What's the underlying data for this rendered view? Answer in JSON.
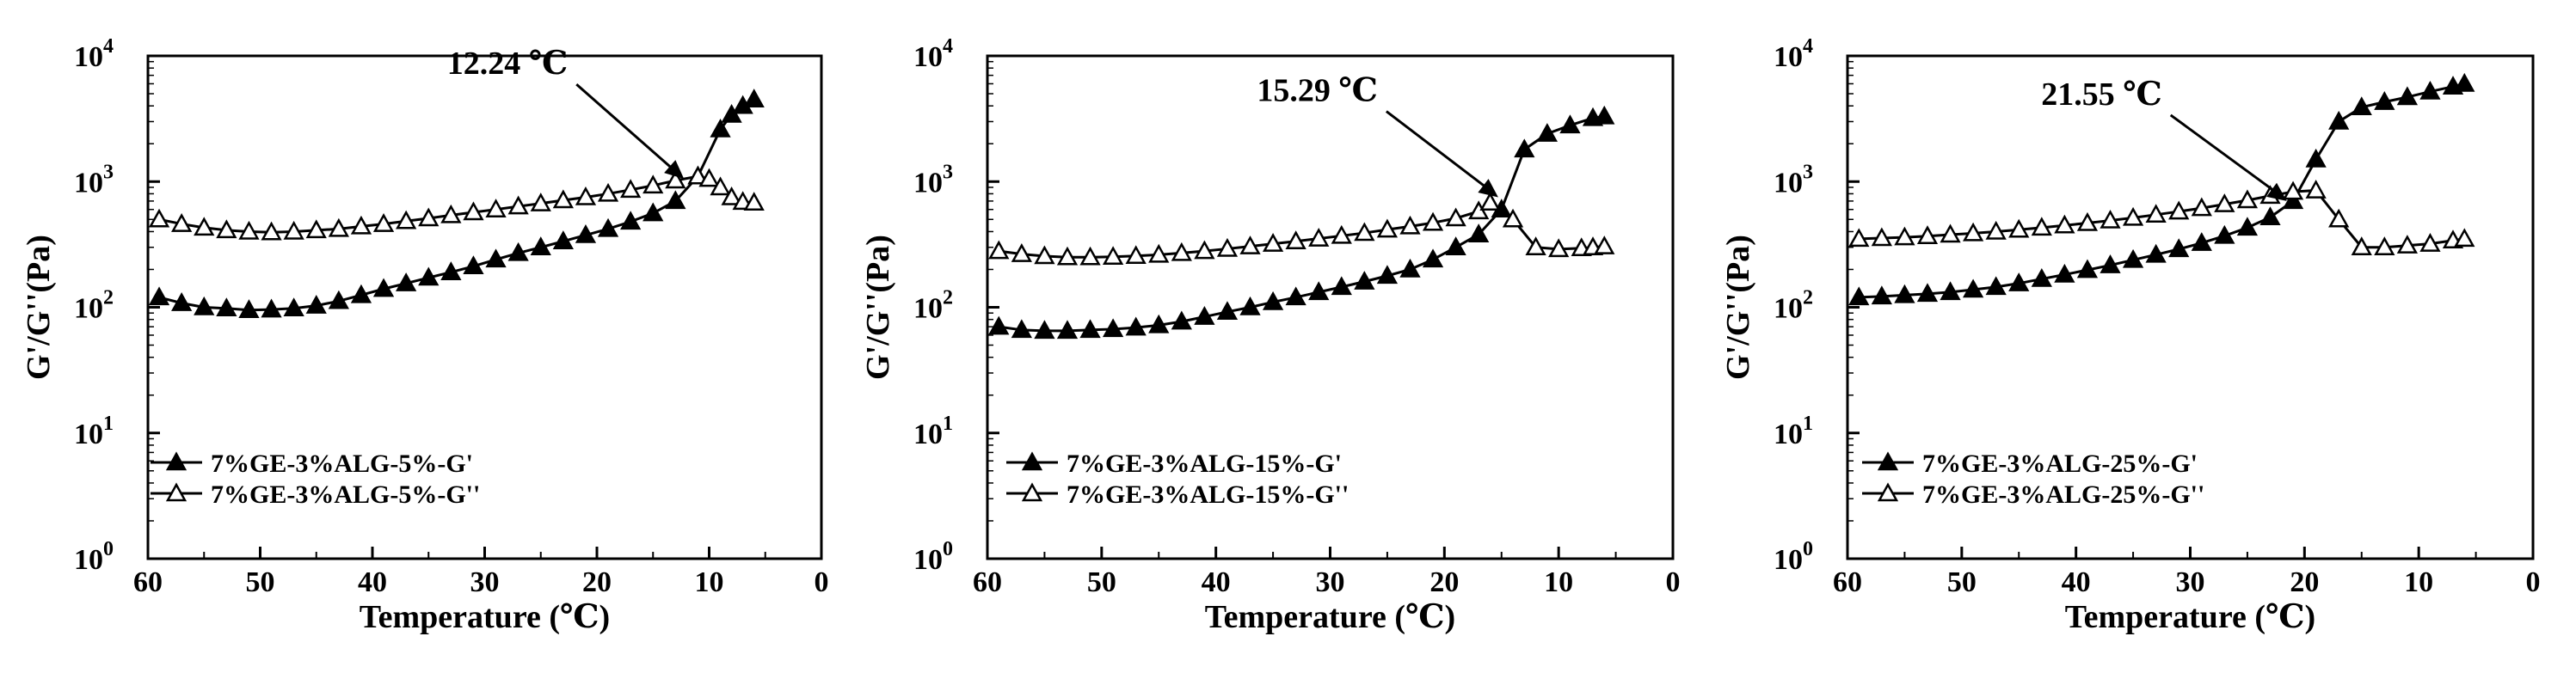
{
  "chart_data": [
    {
      "type": "line",
      "xlabel": "Temperature (℃)",
      "ylabel": "G'/G''(Pa)",
      "xlim": [
        60,
        0
      ],
      "ylim": [
        1,
        10000
      ],
      "yscale": "log",
      "x_ticks": [
        "60",
        "50",
        "40",
        "30",
        "20",
        "10",
        "0"
      ],
      "y_ticks": [
        {
          "base": "10",
          "exp": "0"
        },
        {
          "base": "10",
          "exp": "1"
        },
        {
          "base": "10",
          "exp": "2"
        },
        {
          "base": "10",
          "exp": "3"
        },
        {
          "base": "10",
          "exp": "4"
        }
      ],
      "legend_position": "bottom-left",
      "annotation": {
        "text": "12.24 ℃",
        "x": 12.24,
        "y": 1050
      },
      "series": [
        {
          "name": "7%GE-3%ALG-5%-G'",
          "marker": "filled-triangle",
          "x": [
            59,
            57,
            55,
            53,
            51,
            49,
            47,
            45,
            43,
            41,
            39,
            37,
            35,
            33,
            31,
            29,
            27,
            25,
            23,
            21,
            19,
            17,
            15,
            13,
            11,
            9,
            8,
            7,
            6
          ],
          "y": [
            120,
            108,
            100,
            98,
            95,
            96,
            98,
            103,
            112,
            125,
            140,
            155,
            172,
            190,
            212,
            240,
            270,
            300,
            335,
            375,
            420,
            480,
            560,
            700,
            1100,
            2600,
            3400,
            4000,
            4500
          ]
        },
        {
          "name": "7%GE-3%ALG-5%-G''",
          "marker": "open-triangle",
          "x": [
            59,
            57,
            55,
            53,
            51,
            49,
            47,
            45,
            43,
            41,
            39,
            37,
            35,
            33,
            31,
            29,
            27,
            25,
            23,
            21,
            19,
            17,
            15,
            13,
            11,
            10,
            9,
            8,
            7,
            6
          ],
          "y": [
            500,
            460,
            430,
            410,
            400,
            395,
            400,
            410,
            420,
            440,
            460,
            485,
            510,
            540,
            570,
            600,
            635,
            670,
            710,
            750,
            800,
            860,
            930,
            1020,
            1100,
            1050,
            900,
            750,
            690,
            680
          ]
        }
      ]
    },
    {
      "type": "line",
      "xlabel": "Temperature (℃)",
      "ylabel": "G'/G''(Pa)",
      "xlim": [
        60,
        0
      ],
      "ylim": [
        1,
        10000
      ],
      "yscale": "log",
      "x_ticks": [
        "60",
        "50",
        "40",
        "30",
        "20",
        "10",
        "0"
      ],
      "y_ticks": [
        {
          "base": "10",
          "exp": "0"
        },
        {
          "base": "10",
          "exp": "1"
        },
        {
          "base": "10",
          "exp": "2"
        },
        {
          "base": "10",
          "exp": "3"
        },
        {
          "base": "10",
          "exp": "4"
        }
      ],
      "legend_position": "bottom-left",
      "annotation": {
        "text": "15.29 ℃",
        "x": 15.29,
        "y": 750
      },
      "series": [
        {
          "name": "7%GE-3%ALG-15%-G'",
          "marker": "filled-triangle",
          "x": [
            59,
            57,
            55,
            53,
            51,
            49,
            47,
            45,
            43,
            41,
            39,
            37,
            35,
            33,
            31,
            29,
            27,
            25,
            23,
            21,
            19,
            17,
            15,
            13,
            11,
            9,
            7,
            6
          ],
          "y": [
            70,
            66,
            65,
            65,
            66,
            67,
            69,
            72,
            77,
            84,
            92,
            100,
            110,
            120,
            132,
            145,
            160,
            178,
            200,
            240,
            300,
            380,
            600,
            1800,
            2400,
            2800,
            3200,
            3300
          ]
        },
        {
          "name": "7%GE-3%ALG-15%-G''",
          "marker": "open-triangle",
          "x": [
            59,
            57,
            55,
            53,
            51,
            49,
            47,
            45,
            43,
            41,
            39,
            37,
            35,
            33,
            31,
            29,
            27,
            25,
            23,
            21,
            19,
            17,
            16,
            14,
            12,
            10,
            8,
            7,
            6
          ],
          "y": [
            280,
            265,
            255,
            250,
            250,
            252,
            256,
            262,
            270,
            280,
            292,
            305,
            320,
            335,
            352,
            370,
            390,
            415,
            440,
            470,
            510,
            580,
            680,
            500,
            300,
            290,
            295,
            300,
            305
          ]
        }
      ]
    },
    {
      "type": "line",
      "xlabel": "Temperature (℃)",
      "ylabel": "G'/G''(Pa)",
      "xlim": [
        60,
        0
      ],
      "ylim": [
        1,
        10000
      ],
      "yscale": "log",
      "x_ticks": [
        "60",
        "50",
        "40",
        "30",
        "20",
        "10",
        "0"
      ],
      "y_ticks": [
        {
          "base": "10",
          "exp": "0"
        },
        {
          "base": "10",
          "exp": "1"
        },
        {
          "base": "10",
          "exp": "2"
        },
        {
          "base": "10",
          "exp": "3"
        },
        {
          "base": "10",
          "exp": "4"
        }
      ],
      "legend_position": "bottom-left",
      "annotation": {
        "text": "21.55 ℃",
        "x": 21.55,
        "y": 700
      },
      "series": [
        {
          "name": "7%GE-3%ALG-25%-G'",
          "marker": "filled-triangle",
          "x": [
            59,
            57,
            55,
            53,
            51,
            49,
            47,
            45,
            43,
            41,
            39,
            37,
            35,
            33,
            31,
            29,
            27,
            25,
            23,
            21,
            19,
            17,
            15,
            13,
            11,
            9,
            7,
            6
          ],
          "y": [
            120,
            122,
            125,
            128,
            132,
            138,
            145,
            155,
            168,
            182,
            198,
            216,
            238,
            262,
            290,
            325,
            370,
            430,
            520,
            700,
            1500,
            3000,
            3900,
            4300,
            4700,
            5200,
            5700,
            6000
          ]
        },
        {
          "name": "7%GE-3%ALG-25%-G''",
          "marker": "open-triangle",
          "x": [
            59,
            57,
            55,
            53,
            51,
            49,
            47,
            45,
            43,
            41,
            39,
            37,
            35,
            33,
            31,
            29,
            27,
            25,
            23,
            21,
            19,
            17,
            15,
            13,
            11,
            9,
            7,
            6
          ],
          "y": [
            350,
            355,
            360,
            368,
            378,
            388,
            400,
            414,
            430,
            448,
            468,
            490,
            515,
            545,
            578,
            615,
            660,
            710,
            770,
            830,
            850,
            500,
            300,
            300,
            310,
            320,
            340,
            350
          ]
        }
      ]
    }
  ]
}
